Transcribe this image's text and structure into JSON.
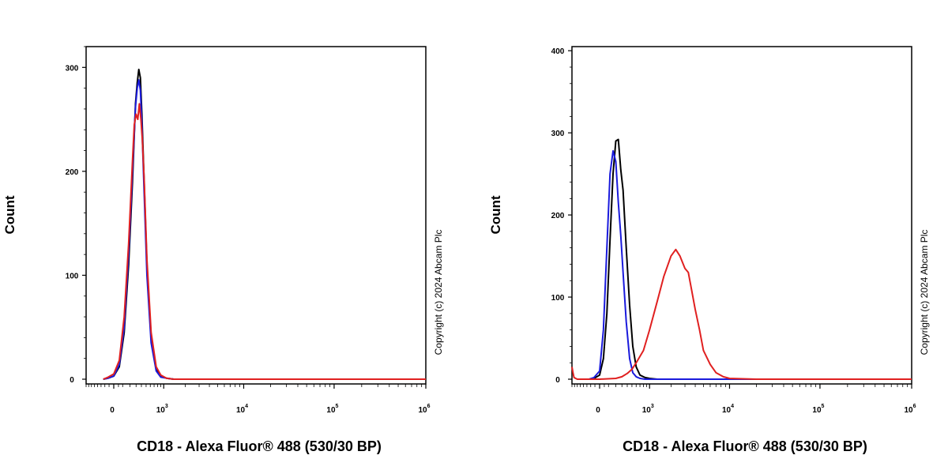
{
  "chart_data": [
    {
      "type": "line",
      "xlabel": "CD18 - Alexa Fluor® 488 (530/30 BP)",
      "ylabel": "Count",
      "copyright": "Copyright (c) 2024 Abcam Plc",
      "x_scale": "biexponential",
      "xlim": [
        -400,
        1000000
      ],
      "ylim": [
        0,
        320
      ],
      "y_ticks": [
        0,
        100,
        200,
        300
      ],
      "x_ticks": [
        {
          "value": 0,
          "base": "0",
          "exp": ""
        },
        {
          "value": 1000,
          "base": "10",
          "exp": "3"
        },
        {
          "value": 10000,
          "base": "10",
          "exp": "4"
        },
        {
          "value": 100000,
          "base": "10",
          "exp": "5"
        },
        {
          "value": 1000000,
          "base": "10",
          "exp": "6"
        }
      ],
      "series": [
        {
          "color": "#000000",
          "x": [
            -120,
            -60,
            0,
            60,
            120,
            180,
            240,
            290,
            320,
            350,
            380,
            410,
            450,
            520,
            620,
            760,
            900,
            1100,
            1400,
            2000,
            10000,
            100000,
            1000000
          ],
          "y": [
            0,
            1,
            3,
            12,
            45,
            110,
            190,
            265,
            285,
            298,
            290,
            255,
            200,
            110,
            40,
            10,
            3,
            1,
            0,
            0,
            0,
            0,
            0
          ]
        },
        {
          "color": "#1a1adc",
          "x": [
            -120,
            -60,
            0,
            60,
            120,
            180,
            240,
            290,
            320,
            350,
            380,
            410,
            450,
            520,
            620,
            760,
            900,
            1100,
            1400,
            2000,
            10000,
            100000,
            1000000
          ],
          "y": [
            0,
            1,
            3,
            14,
            50,
            120,
            200,
            262,
            280,
            288,
            278,
            245,
            190,
            100,
            35,
            8,
            2,
            1,
            0,
            0,
            0,
            0,
            0
          ]
        },
        {
          "color": "#e02020",
          "x": [
            -120,
            -60,
            0,
            60,
            120,
            180,
            240,
            270,
            300,
            330,
            360,
            390,
            420,
            460,
            520,
            620,
            760,
            900,
            1100,
            1400,
            2000,
            10000,
            100000,
            1000000
          ],
          "y": [
            0,
            2,
            5,
            18,
            60,
            130,
            210,
            245,
            255,
            250,
            265,
            250,
            230,
            190,
            115,
            45,
            12,
            4,
            1,
            0,
            0,
            0,
            0,
            0
          ]
        }
      ]
    },
    {
      "type": "line",
      "xlabel": "CD18 - Alexa Fluor® 488 (530/30 BP)",
      "ylabel": "Count",
      "copyright": "Copyright (c) 2024 Abcam Plc",
      "x_scale": "biexponential",
      "xlim": [
        -400,
        1000000
      ],
      "ylim": [
        0,
        405
      ],
      "y_ticks": [
        0,
        100,
        200,
        300,
        400
      ],
      "x_ticks": [
        {
          "value": 0,
          "base": "0",
          "exp": ""
        },
        {
          "value": 1000,
          "base": "10",
          "exp": "3"
        },
        {
          "value": 10000,
          "base": "10",
          "exp": "4"
        },
        {
          "value": 100000,
          "base": "10",
          "exp": "5"
        },
        {
          "value": 1000000,
          "base": "10",
          "exp": "6"
        }
      ],
      "series": [
        {
          "color": "#000000",
          "x": [
            -120,
            -60,
            0,
            40,
            80,
            120,
            160,
            200,
            240,
            280,
            320,
            380,
            450,
            520,
            600,
            700,
            850,
            1000,
            1300,
            2000,
            10000,
            100000,
            1000000
          ],
          "y": [
            0,
            1,
            5,
            25,
            80,
            170,
            250,
            290,
            292,
            255,
            230,
            160,
            90,
            40,
            15,
            5,
            2,
            1,
            0,
            0,
            0,
            0,
            0
          ]
        },
        {
          "color": "#1a1adc",
          "x": [
            -120,
            -60,
            0,
            40,
            80,
            120,
            160,
            200,
            240,
            280,
            320,
            380,
            450,
            520,
            600,
            700,
            850,
            1000,
            1300,
            2000,
            10000,
            100000,
            1000000
          ],
          "y": [
            0,
            2,
            10,
            60,
            160,
            250,
            278,
            265,
            215,
            175,
            130,
            70,
            25,
            8,
            3,
            1,
            0,
            0,
            0,
            0,
            0,
            0,
            0
          ]
        },
        {
          "color": "#e02020",
          "x": [
            -400,
            -380,
            -360,
            -300,
            -200,
            -100,
            0,
            200,
            300,
            400,
            500,
            600,
            800,
            1000,
            1300,
            1600,
            2000,
            2300,
            2600,
            3000,
            3300,
            3600,
            4000,
            4500,
            5000,
            6000,
            7000,
            8500,
            10000,
            20000,
            100000,
            1000000
          ],
          "y": [
            15,
            8,
            2,
            0,
            0,
            0,
            0,
            1,
            3,
            7,
            12,
            20,
            35,
            60,
            95,
            125,
            150,
            158,
            150,
            135,
            130,
            110,
            85,
            60,
            35,
            18,
            8,
            3,
            1,
            0,
            0,
            0
          ]
        }
      ]
    }
  ]
}
